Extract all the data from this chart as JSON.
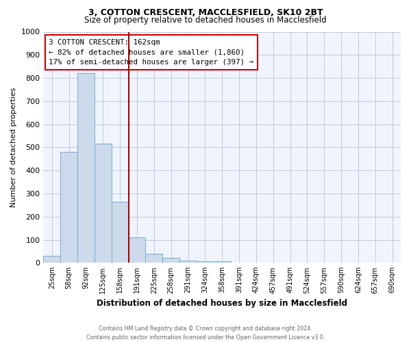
{
  "title1": "3, COTTON CRESCENT, MACCLESFIELD, SK10 2BT",
  "title2": "Size of property relative to detached houses in Macclesfield",
  "xlabel": "Distribution of detached houses by size in Macclesfield",
  "ylabel": "Number of detached properties",
  "bar_labels": [
    "25sqm",
    "58sqm",
    "92sqm",
    "125sqm",
    "158sqm",
    "191sqm",
    "225sqm",
    "258sqm",
    "291sqm",
    "324sqm",
    "358sqm",
    "391sqm",
    "424sqm",
    "457sqm",
    "491sqm",
    "524sqm",
    "557sqm",
    "590sqm",
    "624sqm",
    "657sqm",
    "690sqm"
  ],
  "bar_values": [
    30,
    480,
    820,
    515,
    265,
    110,
    38,
    22,
    10,
    8,
    8,
    0,
    0,
    0,
    0,
    0,
    0,
    0,
    0,
    0,
    0
  ],
  "bar_color": "#ccdaeb",
  "bar_edgecolor": "#7aaad0",
  "ylim": [
    0,
    1000
  ],
  "yticks": [
    0,
    100,
    200,
    300,
    400,
    500,
    600,
    700,
    800,
    900,
    1000
  ],
  "vline_color": "#aa0000",
  "annotation_text": "3 COTTON CRESCENT: 162sqm\n← 82% of detached houses are smaller (1,860)\n17% of semi-detached houses are larger (397) →",
  "annotation_boxcolor": "white",
  "annotation_edgecolor": "#cc0000",
  "footer1": "Contains HM Land Registry data © Crown copyright and database right 2024.",
  "footer2": "Contains public sector information licensed under the Open Government Licence v3.0.",
  "bg_color": "#f0f4ff",
  "grid_color": "#c0c8d8"
}
